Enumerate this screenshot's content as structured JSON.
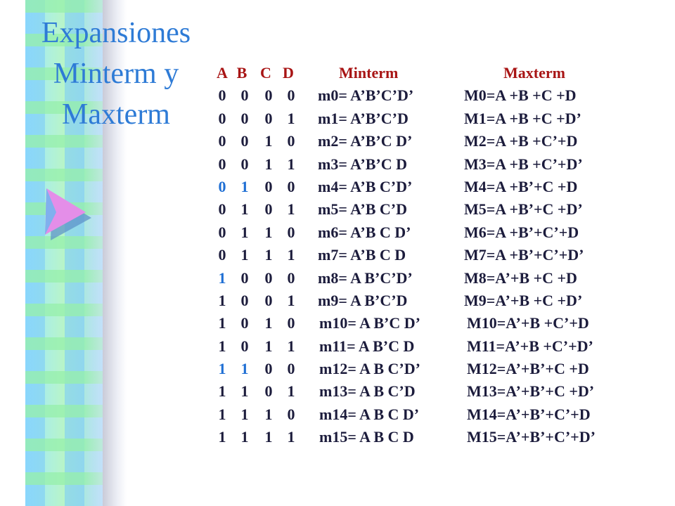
{
  "title": {
    "line1": "Expansiones",
    "line2": "Minterm y",
    "line3": "Maxterm"
  },
  "table": {
    "headers": {
      "a": "A",
      "b": "B",
      "c": "C",
      "d": "D",
      "minterm": "Minterm",
      "maxterm": "Maxterm"
    },
    "rows": [
      {
        "bits": [
          "0",
          "0",
          "0",
          "0"
        ],
        "minterm": "m0= A’B’C’D’",
        "maxterm": "M0=A +B +C +D"
      },
      {
        "bits": [
          "0",
          "0",
          "0",
          "1"
        ],
        "minterm": "m1= A’B’C’D",
        "maxterm": "M1=A +B +C +D’"
      },
      {
        "bits": [
          "0",
          "0",
          "1",
          "0"
        ],
        "minterm": "m2= A’B’C D’",
        "maxterm": "M2=A +B +C’+D"
      },
      {
        "bits": [
          "0",
          "0",
          "1",
          "1"
        ],
        "minterm": "m3= A’B’C D",
        "maxterm": "M3=A +B +C’+D’"
      },
      {
        "bits": [
          "0",
          "1",
          "0",
          "0"
        ],
        "minterm": "m4= A’B C’D’",
        "maxterm": "M4=A +B’+C +D"
      },
      {
        "bits": [
          "0",
          "1",
          "0",
          "1"
        ],
        "minterm": "m5= A’B C’D",
        "maxterm": "M5=A +B’+C +D’"
      },
      {
        "bits": [
          "0",
          "1",
          "1",
          "0"
        ],
        "minterm": "m6= A’B C D’",
        "maxterm": "M6=A +B’+C’+D"
      },
      {
        "bits": [
          "0",
          "1",
          "1",
          "1"
        ],
        "minterm": "m7= A’B C D",
        "maxterm": "M7=A +B’+C’+D’"
      },
      {
        "bits": [
          "1",
          "0",
          "0",
          "0"
        ],
        "minterm": "m8= A B’C’D’",
        "maxterm": "M8=A’+B +C +D"
      },
      {
        "bits": [
          "1",
          "0",
          "0",
          "1"
        ],
        "minterm": "m9= A B’C’D",
        "maxterm": "M9=A’+B +C +D’"
      },
      {
        "bits": [
          "1",
          "0",
          "1",
          "0"
        ],
        "minterm": "m10= A B’C D’",
        "maxterm": "M10=A’+B +C’+D"
      },
      {
        "bits": [
          "1",
          "0",
          "1",
          "1"
        ],
        "minterm": "m11= A B’C D",
        "maxterm": "M11=A’+B +C’+D’"
      },
      {
        "bits": [
          "1",
          "1",
          "0",
          "0"
        ],
        "minterm": "m12= A B C’D’",
        "maxterm": "M12=A’+B’+C +D"
      },
      {
        "bits": [
          "1",
          "1",
          "0",
          "1"
        ],
        "minterm": "m13= A B C’D",
        "maxterm": "M13=A’+B’+C +D’"
      },
      {
        "bits": [
          "1",
          "1",
          "1",
          "0"
        ],
        "minterm": "m14= A B C D’",
        "maxterm": "M14=A’+B’+C’+D"
      },
      {
        "bits": [
          "1",
          "1",
          "1",
          "1"
        ],
        "minterm": "m15= A B C D",
        "maxterm": "M15=A’+B’+C’+D’"
      }
    ]
  },
  "colors": {
    "title": "#2e7bd6",
    "header": "#a81414",
    "text": "#1c1c3c",
    "highlight_bits": "#1f6fd4"
  },
  "icons": {
    "decoration": "triangle-arrow-icon"
  }
}
